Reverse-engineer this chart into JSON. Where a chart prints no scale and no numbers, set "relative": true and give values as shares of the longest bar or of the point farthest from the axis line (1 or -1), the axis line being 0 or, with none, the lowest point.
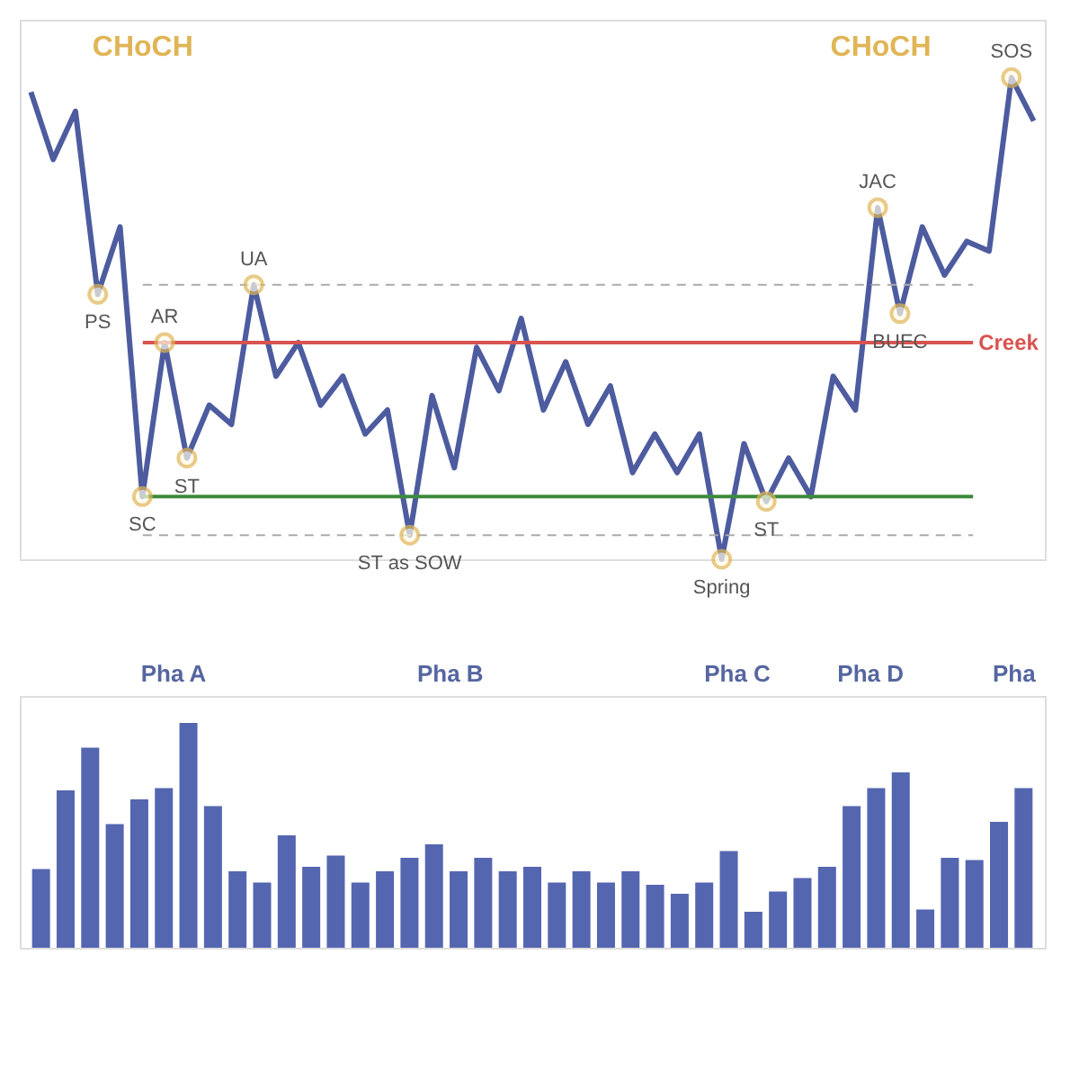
{
  "chart_data": [
    {
      "type": "line",
      "relative": true,
      "categories": [
        null,
        null,
        null,
        null,
        null,
        null,
        null,
        null,
        null,
        null,
        null,
        null,
        null,
        null,
        null,
        null,
        null,
        null,
        null,
        null,
        null,
        null,
        null,
        null,
        null,
        null,
        null,
        null,
        null,
        null,
        null,
        null,
        null,
        null,
        null,
        null,
        null,
        null,
        null,
        null,
        null,
        null,
        null,
        null,
        null,
        null
      ],
      "series": [
        {
          "color": "#4d5b9f",
          "values": [
            0.97,
            0.83,
            0.93,
            0.55,
            0.69,
            0.13,
            0.45,
            0.21,
            0.32,
            0.28,
            0.57,
            0.38,
            0.45,
            0.32,
            0.38,
            0.26,
            0.31,
            0.05,
            0.34,
            0.19,
            0.44,
            0.35,
            0.5,
            0.31,
            0.41,
            0.28,
            0.36,
            0.18,
            0.26,
            0.18,
            0.26,
            0,
            0.24,
            0.12,
            0.21,
            0.13,
            0.38,
            0.31,
            0.73,
            0.51,
            0.69,
            0.59,
            0.66,
            0.64,
            1.0,
            0.91
          ]
        }
      ],
      "annotations": [
        {
          "text": "PS",
          "y": 0.55
        },
        {
          "text": "SC",
          "y": 0.13
        },
        {
          "text": "AR",
          "y": 0.45
        },
        {
          "text": "ST",
          "y": 0.21
        },
        {
          "text": "UA",
          "y": 0.57
        },
        {
          "text": "ST as SOW",
          "y": 0.05
        },
        {
          "text": "Spring",
          "y": 0
        },
        {
          "text": "ST",
          "y": 0.12
        },
        {
          "text": "JAC",
          "y": 0.73
        },
        {
          "text": "BUEC",
          "y": 0.51
        },
        {
          "text": "SOS",
          "y": 1.0
        },
        "CHoCH",
        "CHoCH"
      ],
      "ref_lines": [
        {
          "axis": "y",
          "value": 0.45,
          "label": "Creek",
          "color": "#d9534f",
          "line_style": "solid"
        },
        {
          "axis": "y",
          "value": 0.13,
          "color": "#3d8b3d",
          "line_style": "solid"
        },
        {
          "axis": "y",
          "value": 0.57,
          "color": "#aaaaaa",
          "line_style": "dashed"
        },
        {
          "axis": "y",
          "value": 0.05,
          "color": "#aaaaaa",
          "line_style": "dashed"
        }
      ],
      "tick_labels": false
    },
    {
      "type": "bar",
      "relative": true,
      "categories": [
        null,
        null,
        null,
        null,
        null,
        null,
        null,
        null,
        null,
        null,
        null,
        null,
        null,
        null,
        null,
        null,
        null,
        null,
        null,
        null,
        null,
        null,
        null,
        null,
        null,
        null,
        null,
        null,
        null,
        null,
        null,
        null,
        null,
        null,
        null,
        null,
        null,
        null,
        null,
        null,
        null
      ],
      "series": [
        {
          "color": "#5566b0",
          "values": [
            0.35,
            0.7,
            0.89,
            0.55,
            0.66,
            0.71,
            1.0,
            0.63,
            0.34,
            0.29,
            0.5,
            0.36,
            0.41,
            0.29,
            0.34,
            0.4,
            0.46,
            0.34,
            0.4,
            0.34,
            0.36,
            0.29,
            0.34,
            0.29,
            0.34,
            0.28,
            0.24,
            0.29,
            0.43,
            0.16,
            0.25,
            0.31,
            0.36,
            0.63,
            0.71,
            0.78,
            0.17,
            0.4,
            0.39,
            0.56,
            0.71
          ]
        }
      ],
      "annotations": [
        "Pha A",
        "Pha B",
        "Pha C",
        "Pha D",
        "Pha"
      ],
      "tick_labels": false
    }
  ]
}
